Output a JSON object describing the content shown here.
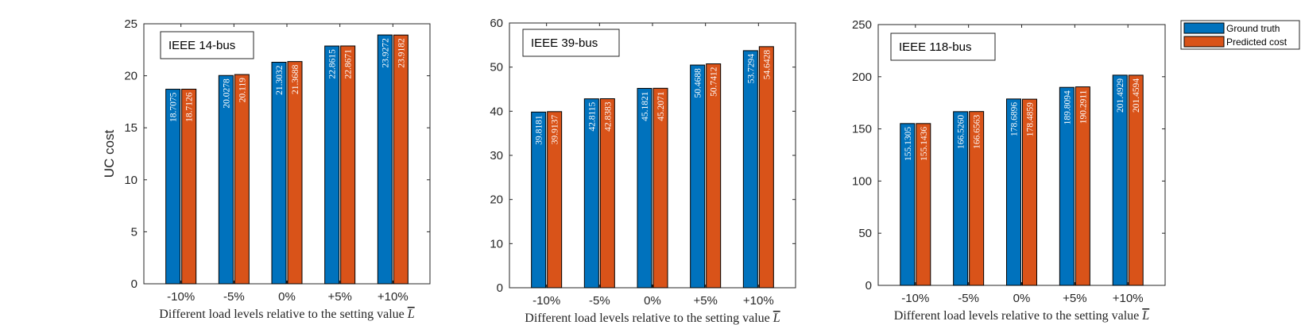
{
  "chart_data": [
    {
      "type": "bar",
      "title": "IEEE 14-bus",
      "ylabel": "UC cost",
      "xlabel_text": "Different load levels relative to the setting value",
      "xlabel_symbol": "L",
      "categories": [
        "-10%",
        "-5%",
        "0%",
        "+5%",
        "+10%"
      ],
      "ylim": [
        0,
        25
      ],
      "yticks": [
        0,
        5,
        10,
        15,
        20,
        25
      ],
      "series": [
        {
          "name": "Ground truth",
          "values": [
            18.7075,
            20.0278,
            21.3032,
            22.8615,
            23.9272
          ],
          "labels": [
            "18.7075",
            "20.0278",
            "21.3032",
            "22.8615",
            "23.9272"
          ]
        },
        {
          "name": "Predicted cost",
          "values": [
            18.7126,
            20.119,
            21.3688,
            22.8671,
            23.9182
          ],
          "labels": [
            "18.7126",
            "20.119",
            "21.3688",
            "22.8671",
            "23.9182"
          ]
        }
      ]
    },
    {
      "type": "bar",
      "title": "IEEE 39-bus",
      "ylabel": "",
      "xlabel_text": "Different load levels relative to the setting value",
      "xlabel_symbol": "L",
      "categories": [
        "-10%",
        "-5%",
        "0%",
        "+5%",
        "+10%"
      ],
      "ylim": [
        0,
        60
      ],
      "yticks": [
        0,
        10,
        20,
        30,
        40,
        50,
        60
      ],
      "series": [
        {
          "name": "Ground truth",
          "values": [
            39.8181,
            42.8115,
            45.1821,
            50.4688,
            53.7294
          ],
          "labels": [
            "39.8181",
            "42.8115",
            "45.1821",
            "50.4688",
            "53.7294"
          ]
        },
        {
          "name": "Predicted cost",
          "values": [
            39.9137,
            42.8383,
            45.2071,
            50.7412,
            54.6428
          ],
          "labels": [
            "39.9137",
            "42.8383",
            "45.2071",
            "50.7412",
            "54.6428"
          ]
        }
      ]
    },
    {
      "type": "bar",
      "title": "IEEE 118-bus",
      "ylabel": "",
      "xlabel_text": "Different load levels relative to the setting value",
      "xlabel_symbol": "L",
      "categories": [
        "-10%",
        "-5%",
        "0%",
        "+5%",
        "+10%"
      ],
      "ylim": [
        0,
        250
      ],
      "yticks": [
        0,
        50,
        100,
        150,
        200,
        250
      ],
      "series": [
        {
          "name": "Ground truth",
          "values": [
            155.1305,
            166.526,
            178.6896,
            189.8094,
            201.4929
          ],
          "labels": [
            "155.1305",
            "166.5260",
            "178.6896",
            "189.8094",
            "201.4929"
          ]
        },
        {
          "name": "Predicted cost",
          "values": [
            155.1436,
            166.6563,
            178.4859,
            190.2911,
            201.4594
          ],
          "labels": [
            "155.1436",
            "166.6563",
            "178.4859",
            "190.2911",
            "201.4594"
          ]
        }
      ]
    }
  ],
  "legend": {
    "placement": "top-right",
    "items": [
      {
        "label": "Ground truth",
        "color": "#0072BD"
      },
      {
        "label": "Predicted cost",
        "color": "#D95319"
      }
    ]
  },
  "colors": {
    "series": [
      "#0072BD",
      "#D95319"
    ],
    "axis": "#262626"
  }
}
